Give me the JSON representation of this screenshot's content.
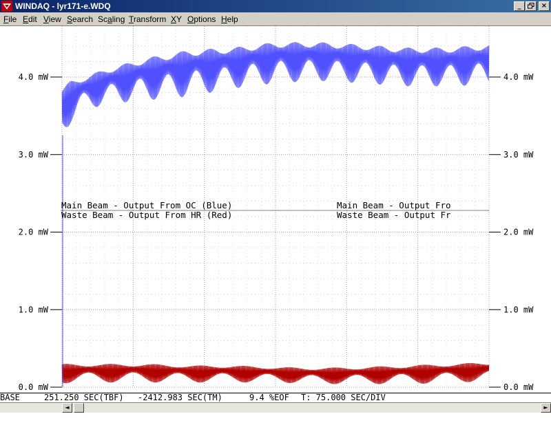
{
  "window": {
    "title": "WINDAQ - lyr171-e.WDQ",
    "app_icon": "windaq-logo-icon"
  },
  "window_buttons": {
    "minimize": "_",
    "maximize": " ",
    "close": "×"
  },
  "menu": [
    {
      "key": "F",
      "rest": "ile"
    },
    {
      "key": "E",
      "rest": "dit"
    },
    {
      "key": "V",
      "rest": "iew"
    },
    {
      "key": "S",
      "rest": "earch"
    },
    {
      "key": "",
      "rest": "Sc",
      "key2": "a",
      "rest2": "ling"
    },
    {
      "key": "T",
      "rest": "ransform"
    },
    {
      "key": "X",
      "rest": "Y"
    },
    {
      "key": "O",
      "rest": "ptions"
    },
    {
      "key": "H",
      "rest": "elp"
    }
  ],
  "status": {
    "base": "BASE",
    "tbf": "251.250 SEC(TBF)",
    "tm": "-2412.983 SEC(TM)",
    "eof": "9.4 %EOF",
    "div": "T: 75.000 SEC/DIV"
  },
  "scrollbar": {
    "left_arrow": "◄",
    "right_arrow": "►"
  },
  "colors": {
    "blue_trace": "#5050ff",
    "red_trace": "#b00000",
    "grid": "#a0a0a0",
    "text": "#000000"
  },
  "chart_data": {
    "type": "line",
    "ylim": [
      0.0,
      4.0
    ],
    "y_ticks": [
      {
        "value": 0.0,
        "label": "0.0 mW"
      },
      {
        "value": 1.0,
        "label": "1.0 mW"
      },
      {
        "value": 2.0,
        "label": "2.0 mW"
      },
      {
        "value": 3.0,
        "label": "3.0 mW"
      },
      {
        "value": 4.0,
        "label": "4.0 mW"
      }
    ],
    "x_divisions": 6,
    "grid": true,
    "channel_labels": {
      "left": [
        "Main Beam - Output From OC (Blue)",
        "Waste Beam - Output From HR (Red)"
      ],
      "right": [
        "Main Beam - Output Fro",
        "Waste Beam - Output Fr"
      ]
    },
    "series": [
      {
        "color": "#5050ff",
        "x": [
          0,
          0.02,
          0.05,
          0.1,
          0.2,
          0.3,
          0.4,
          0.5,
          0.6,
          0.7,
          0.8,
          0.9,
          1.0
        ],
        "upper": [
          3.85,
          3.95,
          4.0,
          4.1,
          4.25,
          4.35,
          4.38,
          4.45,
          4.45,
          4.42,
          4.38,
          4.38,
          4.42
        ],
        "lower": [
          3.25,
          3.4,
          3.55,
          3.65,
          3.7,
          3.75,
          3.85,
          3.92,
          3.95,
          3.92,
          3.88,
          3.88,
          3.9
        ]
      },
      {
        "color": "#b00000",
        "x": [
          0,
          0.1,
          0.2,
          0.3,
          0.4,
          0.5,
          0.6,
          0.7,
          0.8,
          0.9,
          1.0
        ],
        "upper": [
          0.3,
          0.3,
          0.3,
          0.28,
          0.28,
          0.26,
          0.25,
          0.26,
          0.28,
          0.3,
          0.32
        ],
        "lower": [
          0.05,
          0.06,
          0.06,
          0.06,
          0.06,
          0.06,
          0.04,
          0.04,
          0.04,
          0.05,
          0.08
        ]
      }
    ]
  }
}
